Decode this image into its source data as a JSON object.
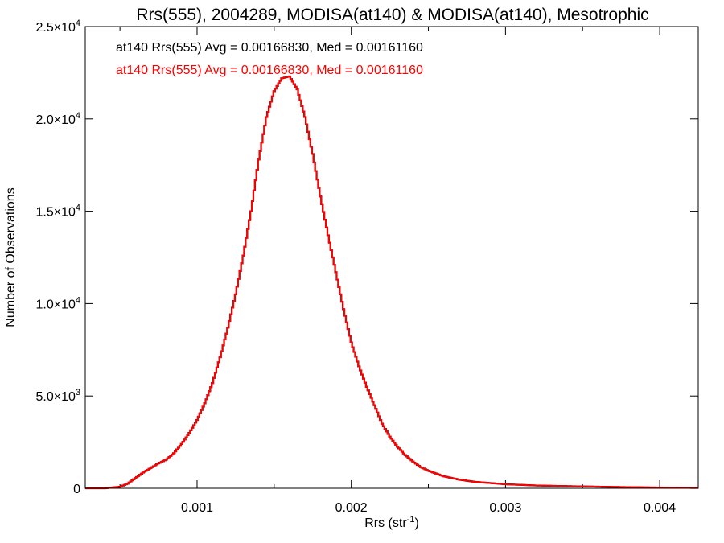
{
  "chart_data": {
    "type": "histogram",
    "title": "Rrs(555), 2004289, MODISA(at140) & MODISA(at140), Mesotrophic",
    "xlabel": "Rrs (str",
    "xlabel_sup": "-1",
    "xlabel_close": ")",
    "ylabel": "Number of Observations",
    "xlim": [
      0.000275,
      0.00425
    ],
    "ylim": [
      0,
      25000
    ],
    "x_ticks": [
      {
        "value": 0.001,
        "label": "0.001"
      },
      {
        "value": 0.002,
        "label": "0.002"
      },
      {
        "value": 0.003,
        "label": "0.003"
      },
      {
        "value": 0.004,
        "label": "0.004"
      }
    ],
    "y_ticks": [
      {
        "value": 0,
        "mant": "0",
        "exp": ""
      },
      {
        "value": 5000,
        "mant": "5.0×10",
        "exp": "3"
      },
      {
        "value": 10000,
        "mant": "1.0×10",
        "exp": "4"
      },
      {
        "value": 15000,
        "mant": "1.5×10",
        "exp": "4"
      },
      {
        "value": 20000,
        "mant": "2.0×10",
        "exp": "4"
      },
      {
        "value": 25000,
        "mant": "2.5×10",
        "exp": "4"
      }
    ],
    "annotations": [
      {
        "text": "at140 Rrs(555) Avg = 0.00166830, Med = 0.00161160",
        "color": "#000000"
      },
      {
        "text": "at140 Rrs(555) Avg = 0.00166830, Med = 0.00161160",
        "color": "#ff0000"
      }
    ],
    "series": [
      {
        "color": "#000000"
      },
      {
        "color": "#ff0000"
      }
    ],
    "points": [
      [
        0.00028,
        0
      ],
      [
        0.0004,
        0
      ],
      [
        0.0005,
        80
      ],
      [
        0.00055,
        250
      ],
      [
        0.0006,
        550
      ],
      [
        0.00065,
        850
      ],
      [
        0.0007,
        1100
      ],
      [
        0.00075,
        1350
      ],
      [
        0.0008,
        1550
      ],
      [
        0.00085,
        1900
      ],
      [
        0.0009,
        2400
      ],
      [
        0.00095,
        3000
      ],
      [
        0.001,
        3700
      ],
      [
        0.00105,
        4600
      ],
      [
        0.0011,
        5700
      ],
      [
        0.00115,
        7100
      ],
      [
        0.0012,
        8700
      ],
      [
        0.00125,
        10500
      ],
      [
        0.0013,
        12600
      ],
      [
        0.00135,
        15000
      ],
      [
        0.0014,
        17800
      ],
      [
        0.00145,
        20100
      ],
      [
        0.0015,
        21500
      ],
      [
        0.00155,
        22200
      ],
      [
        0.0016,
        22300
      ],
      [
        0.00165,
        21600
      ],
      [
        0.0017,
        20100
      ],
      [
        0.00175,
        18100
      ],
      [
        0.0018,
        15800
      ],
      [
        0.00185,
        13700
      ],
      [
        0.0019,
        11700
      ],
      [
        0.00195,
        9700
      ],
      [
        0.002,
        7900
      ],
      [
        0.00205,
        6600
      ],
      [
        0.0021,
        5500
      ],
      [
        0.00215,
        4500
      ],
      [
        0.0022,
        3500
      ],
      [
        0.00225,
        2800
      ],
      [
        0.0023,
        2250
      ],
      [
        0.00235,
        1800
      ],
      [
        0.0024,
        1450
      ],
      [
        0.00245,
        1150
      ],
      [
        0.0025,
        950
      ],
      [
        0.0026,
        650
      ],
      [
        0.0027,
        470
      ],
      [
        0.0028,
        350
      ],
      [
        0.003,
        220
      ],
      [
        0.0032,
        150
      ],
      [
        0.0035,
        100
      ],
      [
        0.0038,
        60
      ],
      [
        0.004,
        40
      ],
      [
        0.00425,
        20
      ]
    ]
  }
}
